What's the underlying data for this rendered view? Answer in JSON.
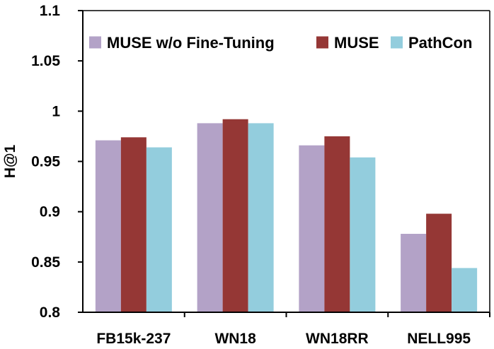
{
  "chart_data": {
    "type": "bar",
    "title": "",
    "xlabel": "",
    "ylabel": "H@1",
    "ylim": [
      0.8,
      1.1
    ],
    "yticks": [
      "0.8",
      "0.85",
      "0.9",
      "0.95",
      "1",
      "1.05",
      "1.1"
    ],
    "grid": false,
    "legend_position": "top",
    "categories": [
      "FB15k-237",
      "WN18",
      "WN18RR",
      "NELL995"
    ],
    "series": [
      {
        "name": "MUSE w/o Fine-Tuning",
        "color": "#b3a2c7",
        "values": [
          0.971,
          0.988,
          0.966,
          0.878
        ]
      },
      {
        "name": "MUSE",
        "color": "#953735",
        "values": [
          0.974,
          0.992,
          0.975,
          0.898
        ]
      },
      {
        "name": "PathCon",
        "color": "#93cddd",
        "values": [
          0.964,
          0.988,
          0.954,
          0.844
        ]
      }
    ]
  }
}
